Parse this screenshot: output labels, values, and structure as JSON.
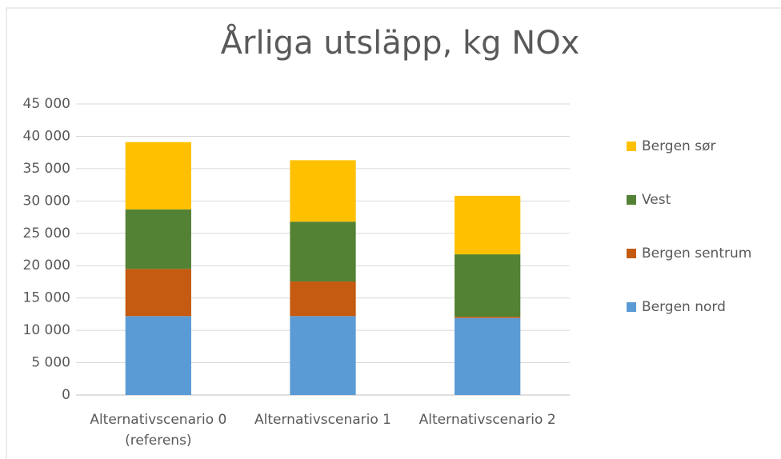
{
  "chart_data": {
    "type": "bar",
    "stacked": true,
    "title": "Årliga utsläpp, kg NOx",
    "categories": [
      "Alternativscenario 0 (referens)",
      "Alternativscenario 1",
      "Alternativscenario 2"
    ],
    "series": [
      {
        "name": "Bergen nord",
        "color": "#5b9bd5",
        "values": [
          12200,
          12200,
          11900
        ]
      },
      {
        "name": "Bergen sentrum",
        "color": "#c55a11",
        "values": [
          7300,
          5350,
          200
        ]
      },
      {
        "name": "Vest",
        "color": "#548235",
        "values": [
          9200,
          9250,
          9650
        ]
      },
      {
        "name": "Bergen sør",
        "color": "#ffc000",
        "values": [
          10400,
          9500,
          9050
        ]
      }
    ],
    "ylim": [
      0,
      45000
    ],
    "yticks": [
      0,
      {
        "value": 5000,
        "label": "5 000"
      },
      {
        "value": 10000,
        "label": "10 000"
      },
      {
        "value": 15000,
        "label": "15 000"
      },
      {
        "value": 20000,
        "label": "20 000"
      },
      {
        "value": 25000,
        "label": "25 000"
      },
      {
        "value": 30000,
        "label": "30 000"
      },
      {
        "value": 35000,
        "label": "35 000"
      },
      {
        "value": 40000,
        "label": "40 000"
      },
      {
        "value": 45000,
        "label": "45 000"
      }
    ],
    "grid": true,
    "legend": "right"
  }
}
